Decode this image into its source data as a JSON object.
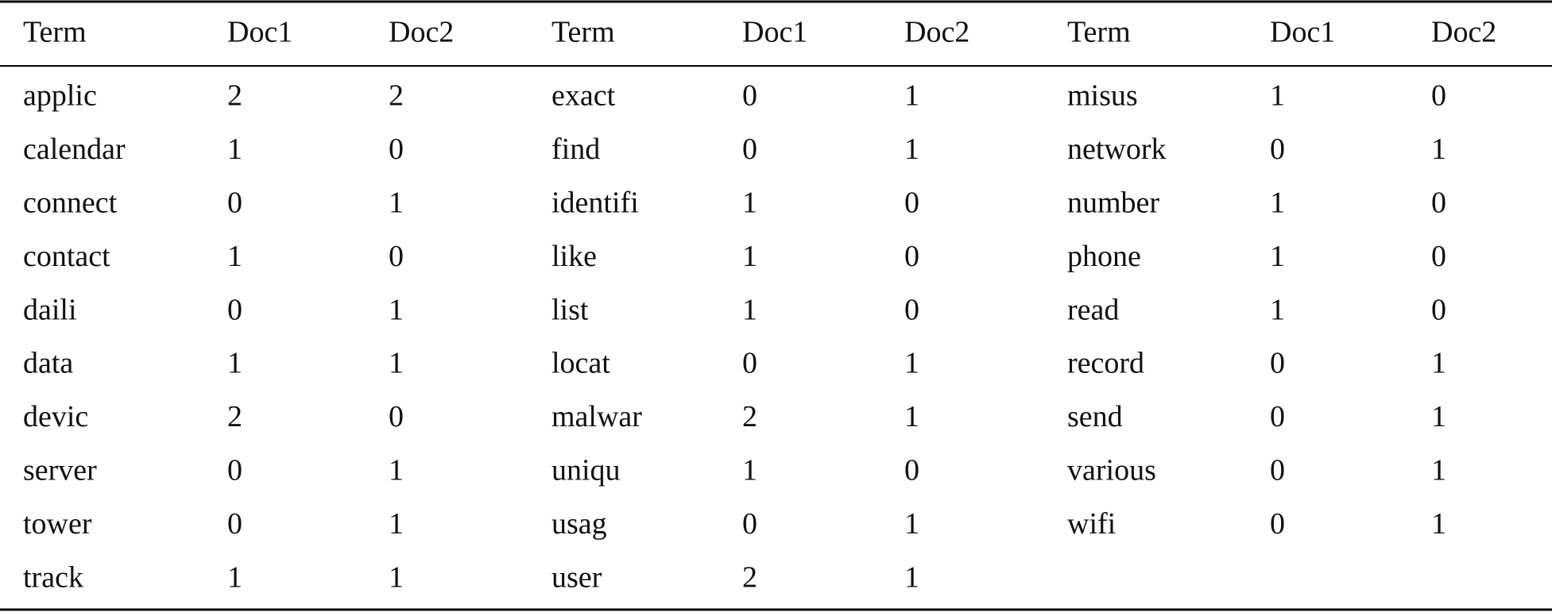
{
  "table": {
    "header": [
      "Term",
      "Doc1",
      "Doc2",
      "Term",
      "Doc1",
      "Doc2",
      "Term",
      "Doc1",
      "Doc2"
    ],
    "rows": [
      [
        "applic",
        2,
        2,
        "exact",
        0,
        1,
        "misus",
        1,
        0
      ],
      [
        "calendar",
        1,
        0,
        "find",
        0,
        1,
        "network",
        0,
        1
      ],
      [
        "connect",
        0,
        1,
        "identifi",
        1,
        0,
        "number",
        1,
        0
      ],
      [
        "contact",
        1,
        0,
        "like",
        1,
        0,
        "phone",
        1,
        0
      ],
      [
        "daili",
        0,
        1,
        "list",
        1,
        0,
        "read",
        1,
        0
      ],
      [
        "data",
        1,
        1,
        "locat",
        0,
        1,
        "record",
        0,
        1
      ],
      [
        "devic",
        2,
        0,
        "malwar",
        2,
        1,
        "send",
        0,
        1
      ],
      [
        "server",
        0,
        1,
        "uniqu",
        1,
        0,
        "various",
        0,
        1
      ],
      [
        "tower",
        0,
        1,
        "usag",
        0,
        1,
        "wifi",
        0,
        1
      ],
      [
        "track",
        1,
        1,
        "user",
        2,
        1
      ]
    ]
  }
}
